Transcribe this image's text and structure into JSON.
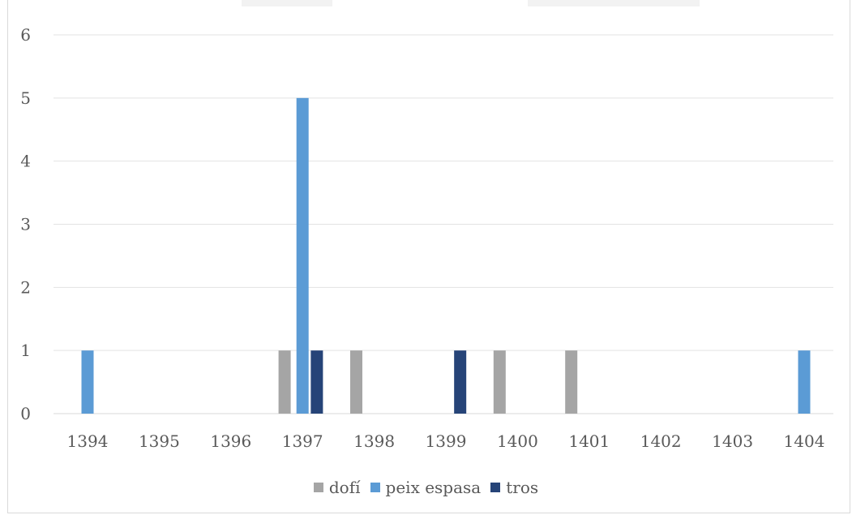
{
  "chart_data": {
    "type": "bar",
    "categories": [
      "1394",
      "1395",
      "1396",
      "1397",
      "1398",
      "1399",
      "1400",
      "1401",
      "1402",
      "1403",
      "1404"
    ],
    "series": [
      {
        "name": "dofí",
        "color": "#a5a5a5",
        "points": [
          {
            "x": 1396.75,
            "y": 1
          },
          {
            "x": 1397.75,
            "y": 1
          },
          {
            "x": 1399.75,
            "y": 1
          },
          {
            "x": 1400.75,
            "y": 1
          }
        ]
      },
      {
        "name": "peix espasa",
        "color": "#5b9bd5",
        "points": [
          {
            "x": 1394,
            "y": 1
          },
          {
            "x": 1397,
            "y": 5
          },
          {
            "x": 1404,
            "y": 1
          }
        ]
      },
      {
        "name": "tros",
        "color": "#264478",
        "points": [
          {
            "x": 1397.2,
            "y": 1
          },
          {
            "x": 1399.2,
            "y": 1
          }
        ]
      }
    ],
    "y_ticks": [
      "0",
      "1",
      "2",
      "3",
      "4",
      "5",
      "6"
    ],
    "ylim": [
      0,
      6
    ],
    "grid": true,
    "legend_position": "bottom",
    "title": "",
    "xlabel": "",
    "ylabel": ""
  }
}
